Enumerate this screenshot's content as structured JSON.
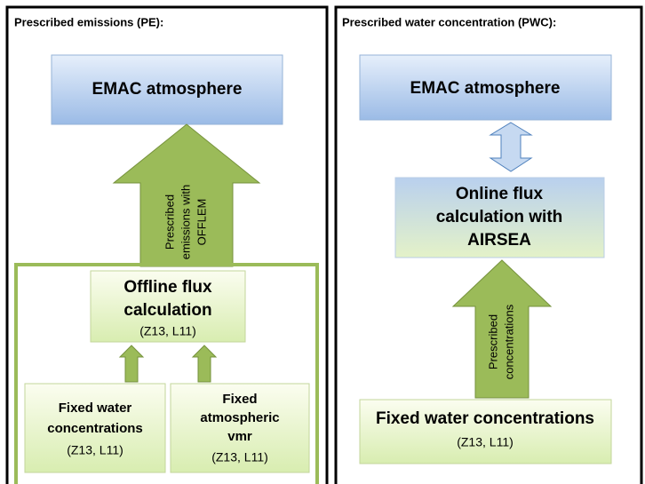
{
  "left": {
    "title": "Prescribed emissions (PE):",
    "top_box": "EMAC atmosphere",
    "arrow_label": [
      "Prescribed",
      "emissions with",
      "OFFLEM"
    ],
    "offline": {
      "lines": [
        "Offline flux",
        "calculation"
      ],
      "sub": "(Z13, L11)"
    },
    "water": {
      "lines": [
        "Fixed water",
        "concentrations"
      ],
      "sub": "(Z13, L11)"
    },
    "vmr": {
      "lines": [
        "Fixed",
        "atmospheric",
        "vmr"
      ],
      "sub": "(Z13, L11)"
    }
  },
  "right": {
    "title": "Prescribed water concentration (PWC):",
    "top_box": "EMAC atmosphere",
    "online": {
      "lines": [
        "Online flux",
        "calculation with",
        "AIRSEA"
      ]
    },
    "arrow_label": [
      "Prescribed",
      "concentrations"
    ],
    "water": {
      "lines": [
        "Fixed water concentrations"
      ],
      "sub": "(Z13, L11)"
    }
  }
}
